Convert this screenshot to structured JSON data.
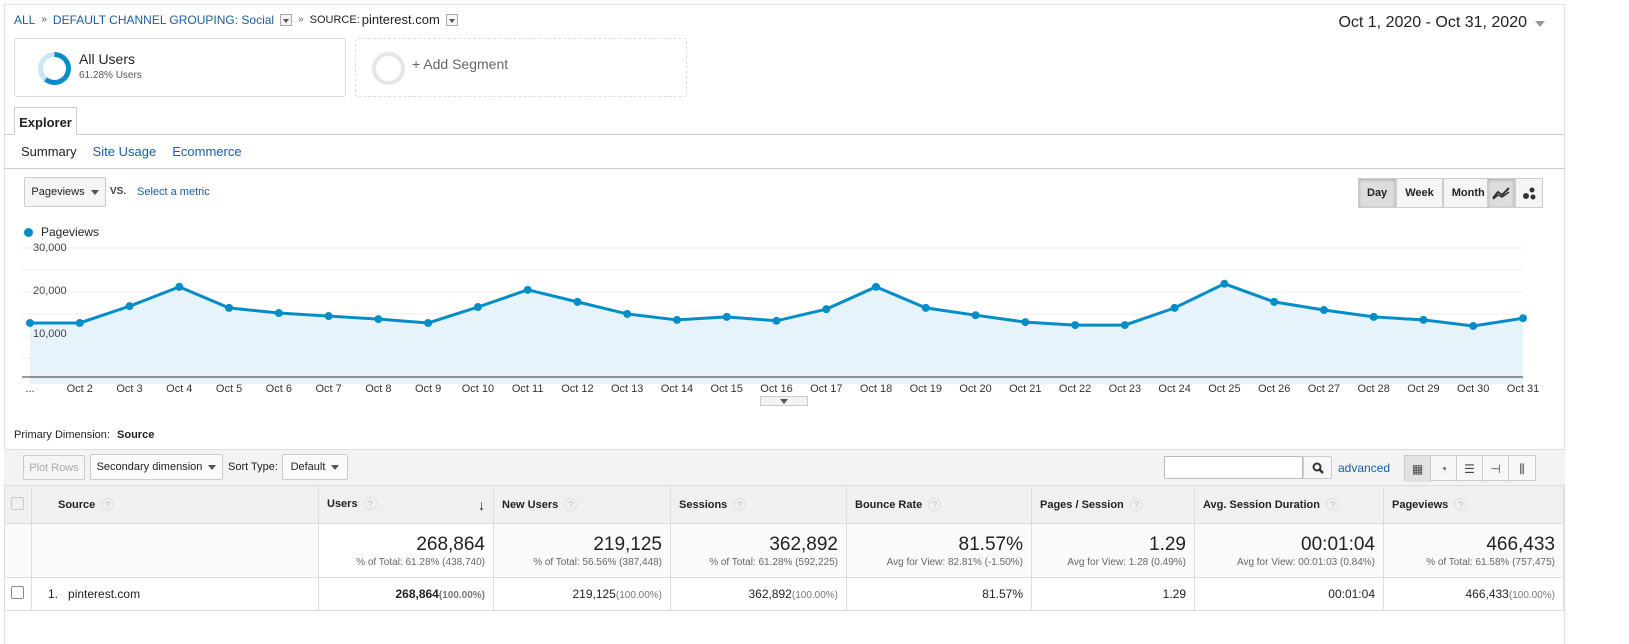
{
  "breadcrumb": {
    "all": "ALL",
    "sep": "»",
    "grouping": "DEFAULT CHANNEL GROUPING: Social",
    "source_label": "SOURCE:",
    "source": "pinterest.com"
  },
  "date_range": "Oct 1, 2020 - Oct 31, 2020",
  "segments": {
    "active_name": "All Users",
    "active_sub": "61.28% Users",
    "add": "+ Add Segment"
  },
  "tabs": {
    "explorer": "Explorer",
    "subtabs": [
      "Summary",
      "Site Usage",
      "Ecommerce"
    ]
  },
  "chart_controls": {
    "metric": "Pageviews",
    "vs": "VS.",
    "select_metric": "Select a metric",
    "periods": [
      "Day",
      "Week",
      "Month"
    ]
  },
  "colors": {
    "accent": "#058dc7",
    "link": "#1a5c9e"
  },
  "chart_data": {
    "type": "line",
    "series": [
      {
        "name": "Pageviews",
        "values": [
          14200,
          14200,
          18100,
          22600,
          17700,
          16500,
          15800,
          15100,
          14200,
          17900,
          21900,
          19100,
          16300,
          14900,
          15600,
          14700,
          17400,
          22600,
          17700,
          16000,
          14400,
          13700,
          13700,
          17700,
          23300,
          19100,
          17200,
          15600,
          14900,
          13500,
          15300
        ]
      }
    ],
    "categories": [
      "...",
      "Oct 2",
      "Oct 3",
      "Oct 4",
      "Oct 5",
      "Oct 6",
      "Oct 7",
      "Oct 8",
      "Oct 9",
      "Oct 10",
      "Oct 11",
      "Oct 12",
      "Oct 13",
      "Oct 14",
      "Oct 15",
      "Oct 16",
      "Oct 17",
      "Oct 18",
      "Oct 19",
      "Oct 20",
      "Oct 21",
      "Oct 22",
      "Oct 23",
      "Oct 24",
      "Oct 25",
      "Oct 26",
      "Oct 27",
      "Oct 28",
      "Oct 29",
      "Oct 30",
      "Oct 31"
    ],
    "yticks": [
      "30,000",
      "20,000",
      "10,000"
    ],
    "ylim": [
      0,
      30000
    ],
    "legend": "top-left"
  },
  "primary_dimension": {
    "label": "Primary Dimension:",
    "value": "Source"
  },
  "toolbar": {
    "plot_rows": "Plot Rows",
    "secondary": "Secondary dimension",
    "sort_label": "Sort Type:",
    "sort_value": "Default",
    "advanced": "advanced",
    "search_value": ""
  },
  "table": {
    "headers": [
      "Source",
      "Users",
      "New Users",
      "Sessions",
      "Bounce Rate",
      "Pages / Session",
      "Avg. Session Duration",
      "Pageviews"
    ],
    "totals": [
      {
        "value": "268,864",
        "sub": "% of Total: 61.28% (438,740)"
      },
      {
        "value": "219,125",
        "sub": "% of Total: 56.56% (387,448)"
      },
      {
        "value": "362,892",
        "sub": "% of Total: 61.28% (592,225)"
      },
      {
        "value": "81.57%",
        "sub": "Avg for View: 82.81% (-1.50%)"
      },
      {
        "value": "1.29",
        "sub": "Avg for View: 1.28 (0.49%)"
      },
      {
        "value": "00:01:04",
        "sub": "Avg for View: 00:01:03 (0.84%)"
      },
      {
        "value": "466,433",
        "sub": "% of Total: 61.58% (757,475)"
      }
    ],
    "rows": [
      {
        "index": "1.",
        "source": "pinterest.com",
        "users": "268,864",
        "users_pct": "(100.00%)",
        "new_users": "219,125",
        "new_users_pct": "(100.00%)",
        "sessions": "362,892",
        "sessions_pct": "(100.00%)",
        "bounce": "81.57%",
        "pages": "1.29",
        "duration": "00:01:04",
        "pageviews": "466,433",
        "pageviews_pct": "(100.00%)"
      }
    ]
  }
}
